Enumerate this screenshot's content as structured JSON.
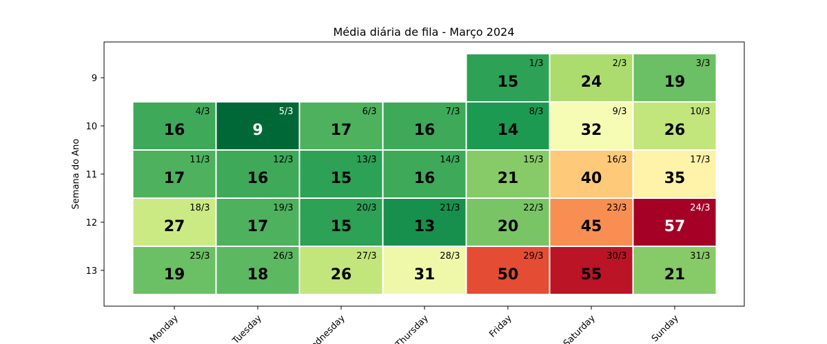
{
  "chart_data": {
    "type": "heatmap",
    "title": "Média diária de fila - Março 2024",
    "xlabel": "",
    "ylabel": "Semana do Ano",
    "x_categories": [
      "Monday",
      "Tuesday",
      "Wednesday",
      "Thursday",
      "Friday",
      "Saturday",
      "Sunday"
    ],
    "y_categories": [
      "9",
      "10",
      "11",
      "12",
      "13"
    ],
    "color_scale": "RdYlGn_r",
    "value_range": [
      9,
      57
    ],
    "grid": false,
    "cells": [
      {
        "day": 4,
        "week": 0,
        "date": "1/3",
        "value": 15
      },
      {
        "day": 5,
        "week": 0,
        "date": "2/3",
        "value": 24
      },
      {
        "day": 6,
        "week": 0,
        "date": "3/3",
        "value": 19
      },
      {
        "day": 0,
        "week": 1,
        "date": "4/3",
        "value": 16
      },
      {
        "day": 1,
        "week": 1,
        "date": "5/3",
        "value": 9
      },
      {
        "day": 2,
        "week": 1,
        "date": "6/3",
        "value": 17
      },
      {
        "day": 3,
        "week": 1,
        "date": "7/3",
        "value": 16
      },
      {
        "day": 4,
        "week": 1,
        "date": "8/3",
        "value": 14
      },
      {
        "day": 5,
        "week": 1,
        "date": "9/3",
        "value": 32
      },
      {
        "day": 6,
        "week": 1,
        "date": "10/3",
        "value": 26
      },
      {
        "day": 0,
        "week": 2,
        "date": "11/3",
        "value": 17
      },
      {
        "day": 1,
        "week": 2,
        "date": "12/3",
        "value": 16
      },
      {
        "day": 2,
        "week": 2,
        "date": "13/3",
        "value": 15
      },
      {
        "day": 3,
        "week": 2,
        "date": "14/3",
        "value": 16
      },
      {
        "day": 4,
        "week": 2,
        "date": "15/3",
        "value": 21
      },
      {
        "day": 5,
        "week": 2,
        "date": "16/3",
        "value": 40
      },
      {
        "day": 6,
        "week": 2,
        "date": "17/3",
        "value": 35
      },
      {
        "day": 0,
        "week": 3,
        "date": "18/3",
        "value": 27
      },
      {
        "day": 1,
        "week": 3,
        "date": "19/3",
        "value": 17
      },
      {
        "day": 2,
        "week": 3,
        "date": "20/3",
        "value": 15
      },
      {
        "day": 3,
        "week": 3,
        "date": "21/3",
        "value": 13
      },
      {
        "day": 4,
        "week": 3,
        "date": "22/3",
        "value": 20
      },
      {
        "day": 5,
        "week": 3,
        "date": "23/3",
        "value": 45
      },
      {
        "day": 6,
        "week": 3,
        "date": "24/3",
        "value": 57
      },
      {
        "day": 0,
        "week": 4,
        "date": "25/3",
        "value": 19
      },
      {
        "day": 1,
        "week": 4,
        "date": "26/3",
        "value": 18
      },
      {
        "day": 2,
        "week": 4,
        "date": "27/3",
        "value": 26
      },
      {
        "day": 3,
        "week": 4,
        "date": "28/3",
        "value": 31
      },
      {
        "day": 4,
        "week": 4,
        "date": "29/3",
        "value": 50
      },
      {
        "day": 5,
        "week": 4,
        "date": "30/3",
        "value": 55
      },
      {
        "day": 6,
        "week": 4,
        "date": "31/3",
        "value": 21
      }
    ]
  }
}
